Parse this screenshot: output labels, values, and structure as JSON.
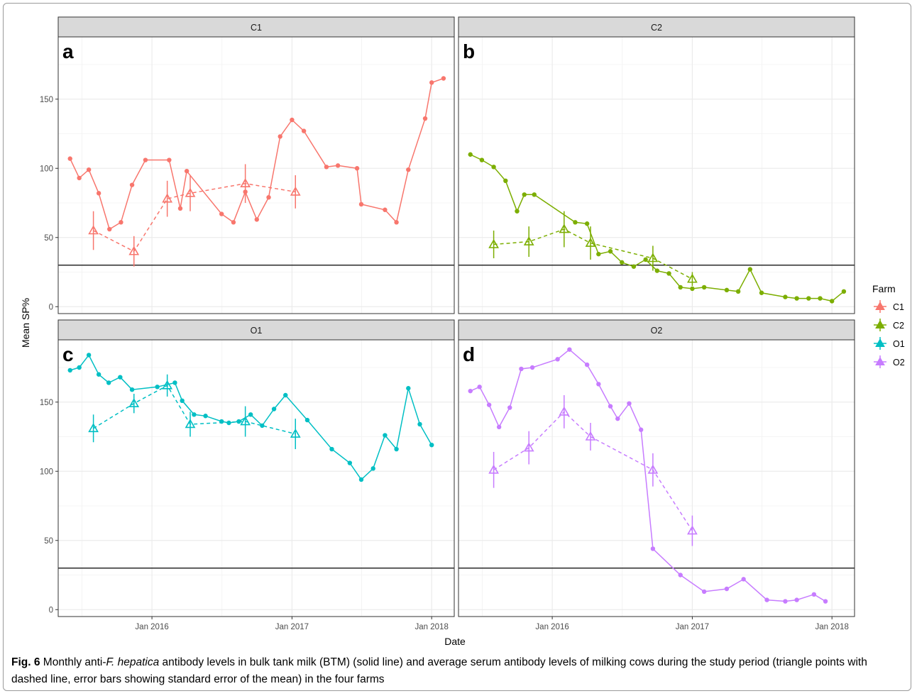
{
  "figure": {
    "caption": {
      "label": "Fig. 6",
      "part1": " Monthly anti-",
      "italic": "F. hepatica",
      "part2": " antibody levels in bulk tank milk (BTM) (solid line) and average serum antibody levels of milking cows during the study period (triangle points with dashed line, error bars showing standard error of the mean) in the four farms"
    },
    "colors": {
      "C1": "#F8766D",
      "C2": "#7CAE00",
      "O1": "#00BFC4",
      "O2": "#C77CFF",
      "strip": "#d9d9d9",
      "grid": "#ebebeb"
    }
  },
  "chart_data": {
    "type": "line",
    "xlabel": "Date",
    "ylabel": "Mean SP%",
    "x_ticks": [
      "Jan 2016",
      "Jan 2017",
      "Jan 2018"
    ],
    "x_range": [
      "2015-05-01",
      "2018-03-01"
    ],
    "grid": true,
    "reference_line_y": 30,
    "legend": {
      "title": "Farm",
      "position": "right",
      "entries": [
        "C1",
        "C2",
        "O1",
        "O2"
      ]
    },
    "panels": [
      {
        "id": "C1",
        "tag": "a",
        "strip": "C1",
        "color": "#F8766D",
        "ylim": [
          -5,
          195
        ],
        "y_ticks": [
          0,
          50,
          100,
          150
        ],
        "btm": [
          [
            "2015-06-01",
            107
          ],
          [
            "2015-06-25",
            93
          ],
          [
            "2015-07-20",
            99
          ],
          [
            "2015-08-15",
            82
          ],
          [
            "2015-09-12",
            56
          ],
          [
            "2015-10-12",
            61
          ],
          [
            "2015-11-10",
            88
          ],
          [
            "2015-12-15",
            106
          ],
          [
            "2016-02-15",
            106
          ],
          [
            "2016-03-15",
            71
          ],
          [
            "2016-04-01",
            98
          ],
          [
            "2016-07-01",
            67
          ],
          [
            "2016-08-01",
            61
          ],
          [
            "2016-09-01",
            83
          ],
          [
            "2016-10-01",
            63
          ],
          [
            "2016-11-01",
            79
          ],
          [
            "2016-12-01",
            123
          ],
          [
            "2017-01-01",
            135
          ],
          [
            "2017-02-01",
            127
          ],
          [
            "2017-04-01",
            101
          ],
          [
            "2017-05-01",
            102
          ],
          [
            "2017-06-20",
            100
          ],
          [
            "2017-07-01",
            74
          ],
          [
            "2017-09-01",
            70
          ],
          [
            "2017-10-01",
            61
          ],
          [
            "2017-11-01",
            99
          ],
          [
            "2017-12-15",
            136
          ],
          [
            "2018-01-01",
            162
          ],
          [
            "2018-02-01",
            165
          ]
        ],
        "serum": [
          {
            "date": "2015-08-01",
            "mean": 55,
            "se": 14
          },
          {
            "date": "2015-11-15",
            "mean": 40,
            "se": 11
          },
          {
            "date": "2016-02-10",
            "mean": 78,
            "se": 13
          },
          {
            "date": "2016-04-10",
            "mean": 82,
            "se": 13
          },
          {
            "date": "2016-09-01",
            "mean": 89,
            "se": 14
          },
          {
            "date": "2017-01-10",
            "mean": 83,
            "se": 12
          }
        ]
      },
      {
        "id": "C2",
        "tag": "b",
        "strip": "C2",
        "color": "#7CAE00",
        "ylim": [
          -5,
          195
        ],
        "y_ticks": [
          0,
          50,
          100,
          150
        ],
        "btm": [
          [
            "2015-06-01",
            110
          ],
          [
            "2015-07-01",
            106
          ],
          [
            "2015-08-01",
            101
          ],
          [
            "2015-09-01",
            91
          ],
          [
            "2015-10-01",
            69
          ],
          [
            "2015-10-20",
            81
          ],
          [
            "2015-11-15",
            81
          ],
          [
            "2016-03-01",
            61
          ],
          [
            "2016-04-01",
            60
          ],
          [
            "2016-05-01",
            38
          ],
          [
            "2016-06-01",
            40
          ],
          [
            "2016-07-01",
            32
          ],
          [
            "2016-08-01",
            29
          ],
          [
            "2016-09-01",
            34
          ],
          [
            "2016-10-01",
            26
          ],
          [
            "2016-11-01",
            24
          ],
          [
            "2016-12-01",
            14
          ],
          [
            "2017-01-01",
            13
          ],
          [
            "2017-02-01",
            14
          ],
          [
            "2017-04-01",
            12
          ],
          [
            "2017-05-01",
            11
          ],
          [
            "2017-06-01",
            27
          ],
          [
            "2017-07-01",
            10
          ],
          [
            "2017-09-01",
            7
          ],
          [
            "2017-10-01",
            6
          ],
          [
            "2017-11-01",
            6
          ],
          [
            "2017-12-01",
            6
          ],
          [
            "2018-01-01",
            4
          ],
          [
            "2018-02-01",
            11
          ]
        ],
        "serum": [
          {
            "date": "2015-08-01",
            "mean": 45,
            "se": 10
          },
          {
            "date": "2015-11-01",
            "mean": 47,
            "se": 11
          },
          {
            "date": "2016-02-01",
            "mean": 56,
            "se": 13
          },
          {
            "date": "2016-04-10",
            "mean": 46,
            "se": 12
          },
          {
            "date": "2016-09-20",
            "mean": 35,
            "se": 9
          },
          {
            "date": "2017-01-01",
            "mean": 20,
            "se": 5
          }
        ]
      },
      {
        "id": "O1",
        "tag": "c",
        "strip": "O1",
        "color": "#00BFC4",
        "ylim": [
          -5,
          195
        ],
        "y_ticks": [
          0,
          50,
          100,
          150
        ],
        "btm": [
          [
            "2015-06-01",
            173
          ],
          [
            "2015-06-25",
            175
          ],
          [
            "2015-07-20",
            184
          ],
          [
            "2015-08-15",
            170
          ],
          [
            "2015-09-10",
            164
          ],
          [
            "2015-10-10",
            168
          ],
          [
            "2015-11-10",
            159
          ],
          [
            "2016-01-15",
            161
          ],
          [
            "2016-03-01",
            164
          ],
          [
            "2016-03-20",
            151
          ],
          [
            "2016-04-20",
            141
          ],
          [
            "2016-05-20",
            140
          ],
          [
            "2016-07-01",
            136
          ],
          [
            "2016-07-20",
            135
          ],
          [
            "2016-08-15",
            136
          ],
          [
            "2016-09-15",
            141
          ],
          [
            "2016-10-15",
            133
          ],
          [
            "2016-11-15",
            145
          ],
          [
            "2016-12-15",
            155
          ],
          [
            "2017-02-10",
            137
          ],
          [
            "2017-04-15",
            116
          ],
          [
            "2017-06-01",
            106
          ],
          [
            "2017-07-01",
            94
          ],
          [
            "2017-08-01",
            102
          ],
          [
            "2017-09-01",
            126
          ],
          [
            "2017-10-01",
            116
          ],
          [
            "2017-11-01",
            160
          ],
          [
            "2017-12-01",
            134
          ],
          [
            "2018-01-01",
            119
          ]
        ],
        "serum": [
          {
            "date": "2015-08-01",
            "mean": 131,
            "se": 10
          },
          {
            "date": "2015-11-15",
            "mean": 149,
            "se": 7
          },
          {
            "date": "2016-02-10",
            "mean": 162,
            "se": 8
          },
          {
            "date": "2016-04-10",
            "mean": 134,
            "se": 9
          },
          {
            "date": "2016-09-01",
            "mean": 136,
            "se": 11
          },
          {
            "date": "2017-01-10",
            "mean": 127,
            "se": 11
          }
        ]
      },
      {
        "id": "O2",
        "tag": "d",
        "strip": "O2",
        "color": "#C77CFF",
        "ylim": [
          -5,
          195
        ],
        "y_ticks": [
          0,
          50,
          100,
          150
        ],
        "btm": [
          [
            "2015-06-01",
            158
          ],
          [
            "2015-06-25",
            161
          ],
          [
            "2015-07-20",
            148
          ],
          [
            "2015-08-15",
            132
          ],
          [
            "2015-09-12",
            146
          ],
          [
            "2015-10-12",
            174
          ],
          [
            "2015-11-10",
            175
          ],
          [
            "2016-01-15",
            181
          ],
          [
            "2016-02-15",
            188
          ],
          [
            "2016-04-01",
            177
          ],
          [
            "2016-05-01",
            163
          ],
          [
            "2016-06-01",
            147
          ],
          [
            "2016-06-20",
            138
          ],
          [
            "2016-07-20",
            149
          ],
          [
            "2016-08-20",
            130
          ],
          [
            "2016-09-20",
            44
          ],
          [
            "2016-12-01",
            25
          ],
          [
            "2017-02-01",
            13
          ],
          [
            "2017-04-01",
            15
          ],
          [
            "2017-05-15",
            22
          ],
          [
            "2017-07-15",
            7
          ],
          [
            "2017-09-01",
            6
          ],
          [
            "2017-10-01",
            7
          ],
          [
            "2017-11-15",
            11
          ],
          [
            "2017-12-15",
            6
          ]
        ],
        "serum": [
          {
            "date": "2015-08-01",
            "mean": 101,
            "se": 13
          },
          {
            "date": "2015-11-01",
            "mean": 117,
            "se": 12
          },
          {
            "date": "2016-02-01",
            "mean": 143,
            "se": 12
          },
          {
            "date": "2016-04-10",
            "mean": 125,
            "se": 10
          },
          {
            "date": "2016-09-20",
            "mean": 101,
            "se": 12
          },
          {
            "date": "2017-01-01",
            "mean": 57,
            "se": 11
          }
        ]
      }
    ]
  }
}
